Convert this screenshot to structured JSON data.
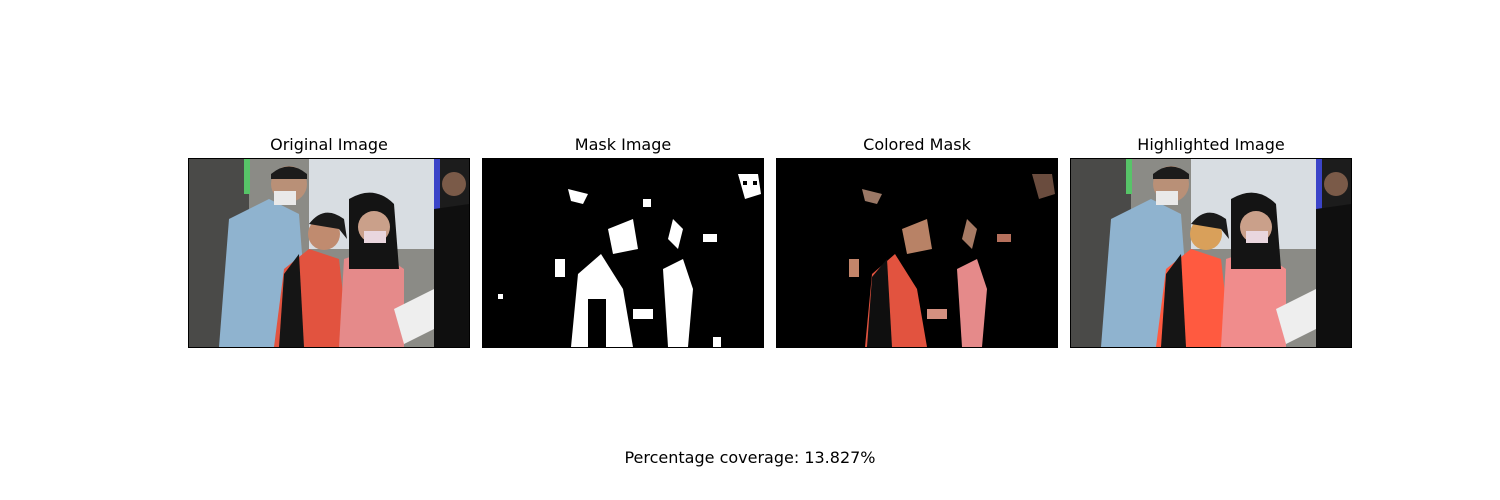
{
  "panels": [
    {
      "title": "Original Image"
    },
    {
      "title": "Mask Image"
    },
    {
      "title": "Colored Mask"
    },
    {
      "title": "Highlighted Image"
    }
  ],
  "footer": {
    "coverage_text": "Percentage coverage: 13.827%"
  },
  "colors": {
    "vest": "#e2533f",
    "jacket": "#8fb3cf",
    "mask_white": "#ffffff",
    "mask_black": "#000000",
    "highlight": "#d9a05a"
  }
}
